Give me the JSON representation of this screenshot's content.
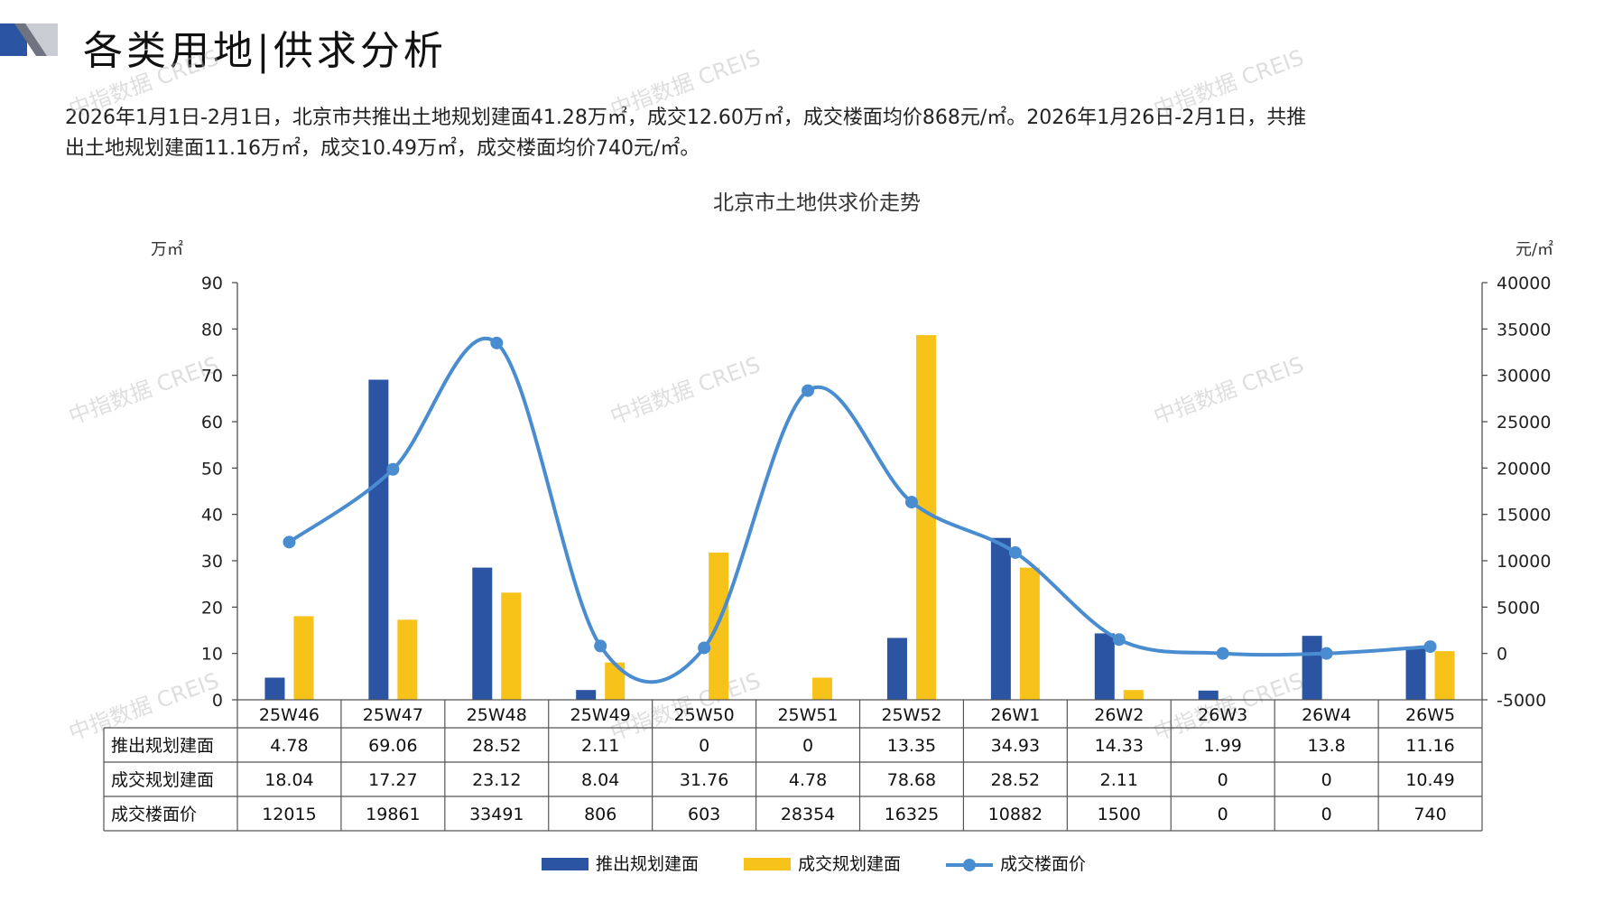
{
  "page": {
    "title": "各类用地|供求分析",
    "intro_line1": "2026年1月1日-2月1日，北京市共推出土地规划建面41.28万㎡，成交12.60万㎡，成交楼面均价868元/㎡。2026年1月26日-2月1日，共推",
    "intro_line2": "出土地规划建面11.16万㎡，成交10.49万㎡，成交楼面均价740元/㎡。",
    "watermark": "中指数据 CREIS"
  },
  "chart_data": {
    "type": "bar+line",
    "title": "北京市土地供求价走势",
    "left_unit": "万㎡",
    "right_unit": "元/㎡",
    "ylim_left": [
      0,
      90
    ],
    "yticks_left": [
      0,
      10,
      20,
      30,
      40,
      50,
      60,
      70,
      80,
      90
    ],
    "ylim_right": [
      -5000,
      40000
    ],
    "yticks_right": [
      -5000,
      0,
      5000,
      10000,
      15000,
      20000,
      25000,
      30000,
      35000,
      40000
    ],
    "categories": [
      "25W46",
      "25W47",
      "25W48",
      "25W49",
      "25W50",
      "25W51",
      "25W52",
      "26W1",
      "26W2",
      "26W3",
      "26W4",
      "26W5"
    ],
    "series": [
      {
        "name": "推出规划建面",
        "kind": "bar",
        "axis": "left",
        "color": "#2b54a3",
        "values": [
          4.78,
          69.06,
          28.52,
          2.11,
          0,
          0,
          13.35,
          34.93,
          14.33,
          1.99,
          13.8,
          11.16
        ],
        "labels": [
          "4.78",
          "69.06",
          "28.52",
          "2.11",
          "0",
          "0",
          "13.35",
          "34.93",
          "14.33",
          "1.99",
          "13.8",
          "11.16"
        ]
      },
      {
        "name": "成交规划建面",
        "kind": "bar",
        "axis": "left",
        "color": "#f7c21a",
        "values": [
          18.04,
          17.27,
          23.12,
          8.04,
          31.76,
          4.78,
          78.68,
          28.52,
          2.11,
          0,
          0,
          10.49
        ],
        "labels": [
          "18.04",
          "17.27",
          "23.12",
          "8.04",
          "31.76",
          "4.78",
          "78.68",
          "28.52",
          "2.11",
          "0",
          "0",
          "10.49"
        ]
      },
      {
        "name": "成交楼面价",
        "kind": "line",
        "axis": "right",
        "color": "#4a8cd0",
        "values": [
          12015,
          19861,
          33491,
          806,
          603,
          28354,
          16325,
          10882,
          1500,
          0,
          0,
          740
        ],
        "labels": [
          "12015",
          "19861",
          "33491",
          "806",
          "603",
          "28354",
          "16325",
          "10882",
          "1500",
          "0",
          "0",
          "740"
        ]
      }
    ],
    "legend_position": "bottom-center",
    "grid": false
  }
}
